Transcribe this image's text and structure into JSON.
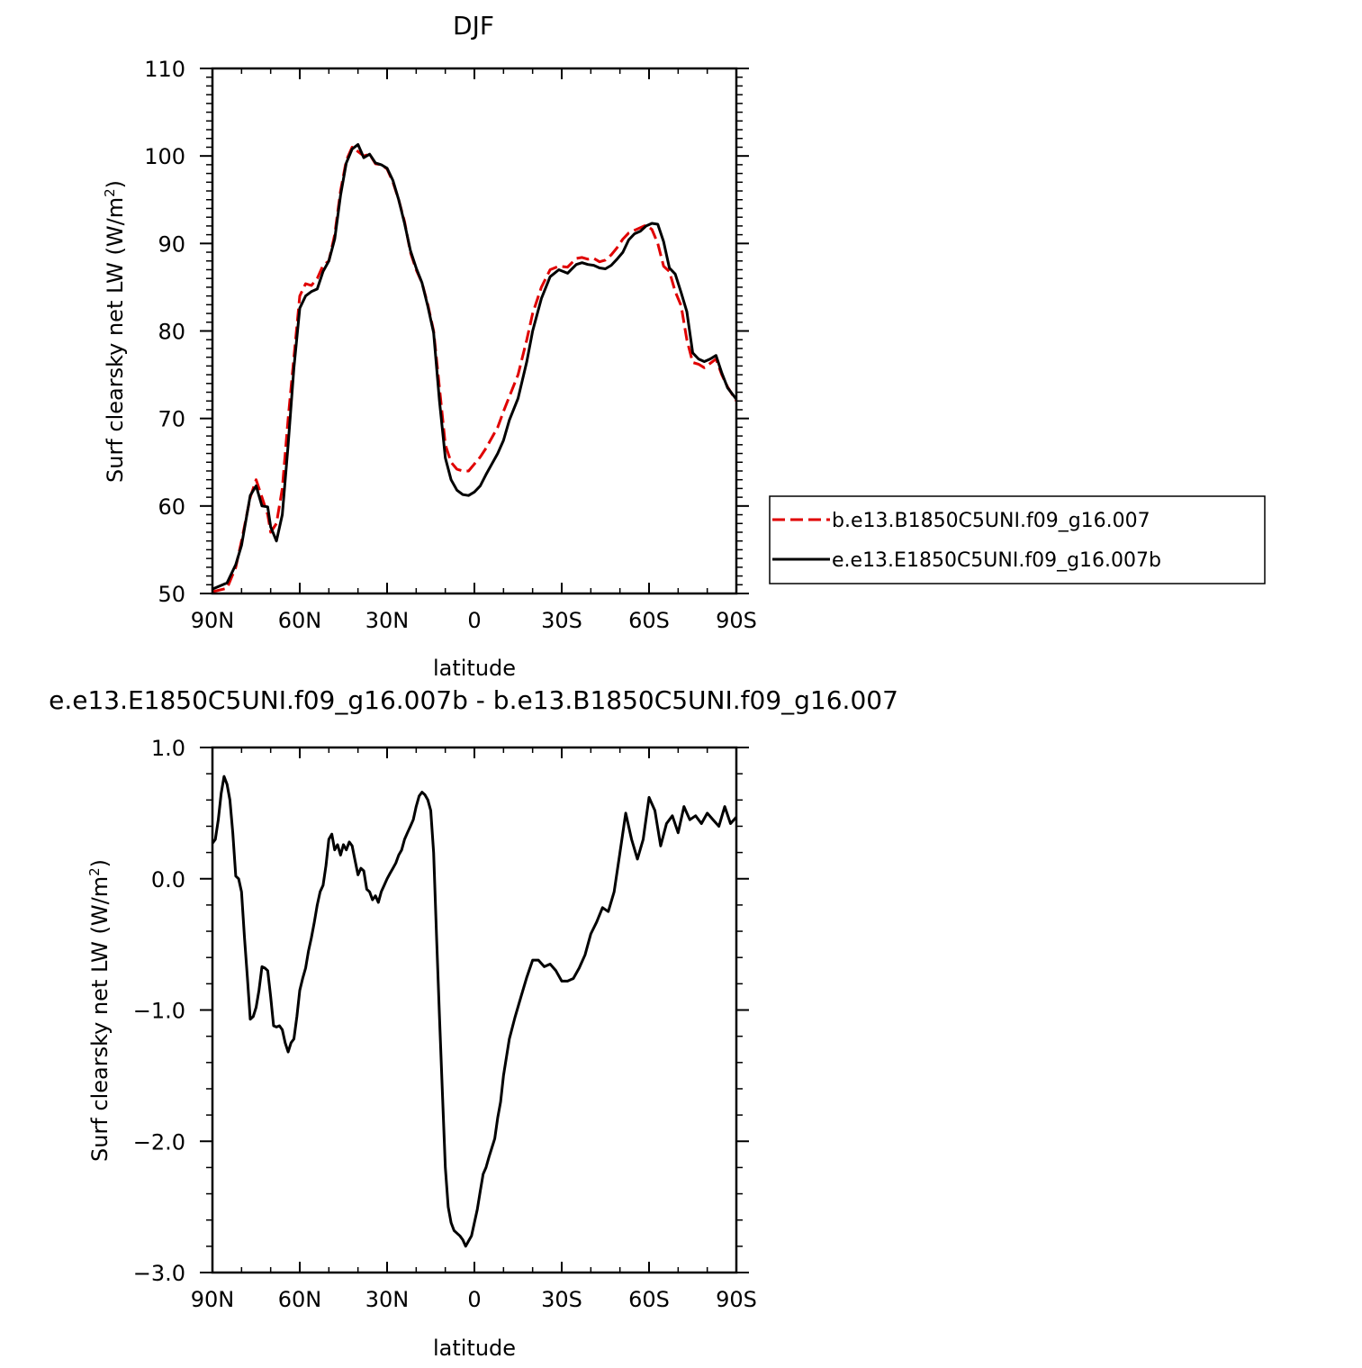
{
  "chart_data": [
    {
      "type": "line",
      "title": "DJF",
      "xlabel": "latitude",
      "ylabel": "Surf clearsky net LW (W/m",
      "ylabel_superscript": "2",
      "ylabel_suffix": ")",
      "xlim": [
        90,
        -90
      ],
      "ylim": [
        50,
        110
      ],
      "x_tick_values": [
        90,
        60,
        30,
        0,
        -30,
        -60,
        -90
      ],
      "x_tick_labels": [
        "90N",
        "60N",
        "30N",
        "0",
        "30S",
        "60S",
        "90S"
      ],
      "y_tick_values": [
        50,
        60,
        70,
        80,
        90,
        100,
        110
      ],
      "y_tick_labels": [
        "50",
        "60",
        "70",
        "80",
        "90",
        "100",
        "110"
      ],
      "grid": false,
      "legend_position": "right",
      "series": [
        {
          "name": "b.e13.B1850C5UNI.f09_g16.007",
          "color": "#e00000",
          "dash": "dashed",
          "x": [
            90,
            85,
            82,
            80,
            77,
            75,
            73,
            71,
            70,
            68,
            66,
            64,
            62,
            60,
            58,
            56,
            54,
            52,
            50,
            48,
            46,
            44,
            42,
            40,
            38,
            36,
            34,
            32,
            30,
            28,
            26,
            24,
            22,
            20,
            18,
            16,
            14,
            12,
            10,
            8,
            6,
            4,
            2,
            0,
            -2,
            -4,
            -6,
            -8,
            -10,
            -12,
            -15,
            -18,
            -20,
            -23,
            -26,
            -29,
            -32,
            -35,
            -37,
            -39,
            -41,
            -43,
            -45,
            -47,
            -49,
            -51,
            -53,
            -55,
            -57,
            -59,
            -61,
            -63,
            -65,
            -67,
            -69,
            -71,
            -73,
            -75,
            -77,
            -79,
            -81,
            -83,
            -85,
            -87,
            -90
          ],
          "y": [
            50.2,
            50.6,
            53,
            56,
            61,
            63,
            61,
            59,
            57,
            58,
            62,
            70,
            77,
            84,
            85.4,
            85.2,
            86,
            87.5,
            88,
            91,
            96,
            99.5,
            101,
            100.5,
            100,
            100.2,
            99.1,
            99,
            98.5,
            97,
            95,
            92.5,
            89,
            87,
            85.5,
            83,
            80,
            73.5,
            67,
            65,
            64.2,
            64,
            64,
            64.8,
            65.6,
            66.6,
            67.8,
            69,
            70.8,
            72.5,
            75,
            79,
            82,
            85,
            87,
            87.4,
            87.3,
            88.3,
            88.4,
            88.2,
            88.3,
            87.9,
            88.1,
            88.7,
            89.5,
            90.5,
            91.2,
            91.5,
            91.8,
            92.1,
            91.6,
            90,
            87.4,
            86.8,
            84.5,
            82.9,
            79,
            76.4,
            76.2,
            75.8,
            76.3,
            76.8,
            75,
            73.6,
            72
          ]
        },
        {
          "name": "e.e13.E1850C5UNI.f09_g16.007b",
          "color": "#000000",
          "dash": "solid",
          "x": [
            90,
            85,
            82,
            80,
            77,
            75,
            73,
            71,
            70,
            68,
            66,
            64,
            62,
            60,
            58,
            56,
            54,
            52,
            50,
            48,
            46,
            44,
            42,
            40,
            38,
            36,
            34,
            32,
            30,
            28,
            26,
            24,
            22,
            20,
            18,
            16,
            14,
            12,
            10,
            8,
            6,
            4,
            2,
            0,
            -2,
            -4,
            -6,
            -8,
            -10,
            -12,
            -15,
            -18,
            -20,
            -23,
            -26,
            -29,
            -32,
            -35,
            -37,
            -39,
            -41,
            -43,
            -45,
            -47,
            -49,
            -51,
            -53,
            -55,
            -57,
            -59,
            -61,
            -63,
            -65,
            -67,
            -69,
            -71,
            -73,
            -75,
            -77,
            -79,
            -81,
            -83,
            -85,
            -87,
            -90
          ],
          "y": [
            50.5,
            51.2,
            53.3,
            55.5,
            61.2,
            62.3,
            60,
            59.9,
            57.6,
            56,
            59,
            67,
            75.8,
            82.6,
            84,
            84.5,
            84.8,
            86.8,
            88,
            90.5,
            95.5,
            99.2,
            100.8,
            101.3,
            99.8,
            100.2,
            99.2,
            99,
            98.6,
            97.2,
            95,
            92.3,
            89.2,
            87.2,
            85.5,
            82.8,
            79.8,
            72,
            65.5,
            63,
            61.8,
            61.3,
            61.2,
            61.6,
            62.3,
            63.6,
            64.8,
            66,
            67.5,
            69.8,
            72.3,
            76.5,
            80,
            83.7,
            86.2,
            87,
            86.6,
            87.6,
            87.8,
            87.6,
            87.5,
            87.2,
            87.1,
            87.5,
            88.2,
            89,
            90.4,
            91.1,
            91.4,
            92,
            92.3,
            92.2,
            90.2,
            87.2,
            86.5,
            84.4,
            82.2,
            77.5,
            76.8,
            76.5,
            76.8,
            77.2,
            75.2,
            73.5,
            72.2
          ]
        }
      ]
    },
    {
      "type": "line",
      "title": "e.e13.E1850C5UNI.f09_g16.007b - b.e13.B1850C5UNI.f09_g16.007",
      "xlabel": "latitude",
      "ylabel": "Surf clearsky net LW (W/m",
      "ylabel_superscript": "2",
      "ylabel_suffix": ")",
      "xlim": [
        90,
        -90
      ],
      "ylim": [
        -3.0,
        1.0
      ],
      "x_tick_values": [
        90,
        60,
        30,
        0,
        -30,
        -60,
        -90
      ],
      "x_tick_labels": [
        "90N",
        "60N",
        "30N",
        "0",
        "30S",
        "60S",
        "90S"
      ],
      "y_tick_values": [
        -3,
        -2,
        -1,
        0,
        1
      ],
      "y_tick_labels": [
        "−3.0",
        "−2.0",
        "−1.0",
        "0.0",
        "1.0"
      ],
      "grid": false,
      "series": [
        {
          "color": "#000000",
          "dash": "solid",
          "x": [
            90,
            89,
            88,
            87,
            86,
            85,
            84,
            83,
            82,
            81,
            80,
            79,
            78,
            77,
            76,
            75,
            74,
            73,
            72,
            71,
            70,
            69,
            68,
            67,
            66,
            65,
            64,
            63,
            62,
            61,
            60,
            59,
            58,
            57,
            56,
            55,
            54,
            53,
            52,
            51,
            50,
            49,
            48,
            47,
            46,
            45,
            44,
            43,
            42,
            41,
            40,
            39,
            38,
            37,
            36,
            35,
            34,
            33,
            32,
            31,
            30,
            29,
            28,
            27,
            26,
            25,
            24,
            23,
            22,
            21,
            20,
            19,
            18,
            17,
            16,
            15,
            14,
            13,
            12,
            11,
            10,
            9,
            8,
            7,
            6,
            5,
            4,
            3,
            2,
            1,
            0,
            -1,
            -2,
            -3,
            -4,
            -5,
            -6,
            -7,
            -8,
            -9,
            -10,
            -12,
            -14,
            -16,
            -18,
            -20,
            -22,
            -24,
            -26,
            -28,
            -30,
            -32,
            -34,
            -36,
            -38,
            -40,
            -42,
            -44,
            -46,
            -48,
            -50,
            -52,
            -54,
            -56,
            -58,
            -60,
            -62,
            -64,
            -66,
            -68,
            -70,
            -72,
            -74,
            -76,
            -78,
            -80,
            -82,
            -84,
            -86,
            -88,
            -90
          ],
          "y": [
            0.27,
            0.3,
            0.45,
            0.65,
            0.78,
            0.72,
            0.6,
            0.35,
            0.02,
            0.0,
            -0.1,
            -0.45,
            -0.75,
            -1.07,
            -1.05,
            -0.98,
            -0.85,
            -0.67,
            -0.68,
            -0.7,
            -0.9,
            -1.12,
            -1.13,
            -1.12,
            -1.15,
            -1.25,
            -1.32,
            -1.25,
            -1.22,
            -1.05,
            -0.85,
            -0.76,
            -0.68,
            -0.55,
            -0.45,
            -0.33,
            -0.2,
            -0.1,
            -0.05,
            0.1,
            0.3,
            0.34,
            0.22,
            0.26,
            0.18,
            0.26,
            0.22,
            0.28,
            0.25,
            0.14,
            0.03,
            0.08,
            0.06,
            -0.08,
            -0.1,
            -0.16,
            -0.13,
            -0.18,
            -0.1,
            -0.05,
            0.0,
            0.04,
            0.08,
            0.12,
            0.18,
            0.22,
            0.3,
            0.35,
            0.4,
            0.45,
            0.55,
            0.63,
            0.66,
            0.64,
            0.6,
            0.52,
            0.2,
            -0.45,
            -1.05,
            -1.62,
            -2.2,
            -2.5,
            -2.62,
            -2.68,
            -2.7,
            -2.72,
            -2.75,
            -2.8,
            -2.76,
            -2.72,
            -2.62,
            -2.52,
            -2.38,
            -2.25,
            -2.2,
            -2.12,
            -2.05,
            -1.98,
            -1.82,
            -1.7,
            -1.5,
            -1.22,
            -1.05,
            -0.9,
            -0.75,
            -0.62,
            -0.62,
            -0.67,
            -0.65,
            -0.7,
            -0.78,
            -0.78,
            -0.76,
            -0.68,
            -0.58,
            -0.42,
            -0.33,
            -0.22,
            -0.25,
            -0.1,
            0.2,
            0.5,
            0.3,
            0.15,
            0.3,
            0.62,
            0.52,
            0.25,
            0.42,
            0.48,
            0.35,
            0.55,
            0.45,
            0.48,
            0.42,
            0.5,
            0.45,
            0.4,
            0.55,
            0.42,
            0.47
          ]
        }
      ]
    }
  ]
}
